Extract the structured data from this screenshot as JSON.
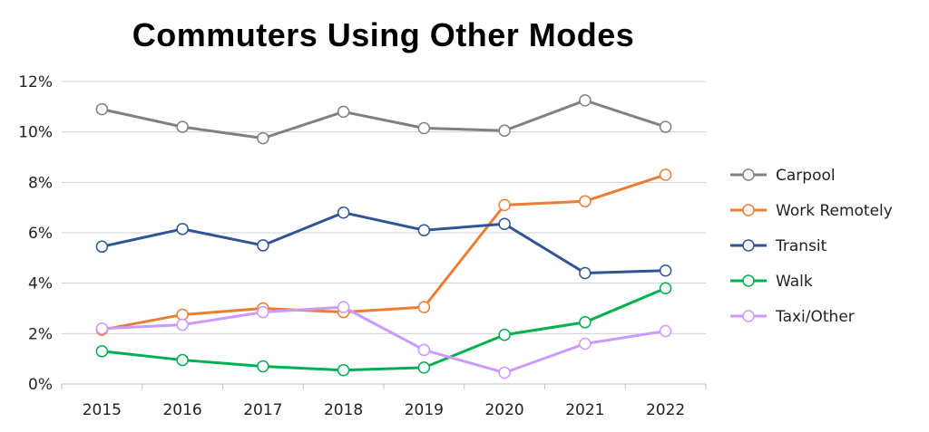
{
  "chart_data": {
    "type": "line",
    "title": "Commuters Using Other Modes",
    "xlabel": "",
    "ylabel": "",
    "categories": [
      "2015",
      "2016",
      "2017",
      "2018",
      "2019",
      "2020",
      "2021",
      "2022"
    ],
    "ylim": [
      0,
      12
    ],
    "yticks": [
      0,
      2,
      4,
      6,
      8,
      10,
      12
    ],
    "ytick_labels": [
      "0%",
      "2%",
      "4%",
      "6%",
      "8%",
      "10%",
      "12%"
    ],
    "grid": true,
    "legend_position": "right",
    "series": [
      {
        "name": "Carpool",
        "color": "#808080",
        "values": [
          10.9,
          10.2,
          9.75,
          10.8,
          10.15,
          10.05,
          11.25,
          10.2
        ]
      },
      {
        "name": "Work Remotely",
        "color": "#ED7D31",
        "values": [
          2.15,
          2.75,
          3.0,
          2.85,
          3.05,
          7.1,
          7.25,
          8.3
        ]
      },
      {
        "name": "Transit",
        "color": "#2F5597",
        "values": [
          5.45,
          6.15,
          5.5,
          6.8,
          6.1,
          6.35,
          4.4,
          4.5
        ]
      },
      {
        "name": "Walk",
        "color": "#00B050",
        "values": [
          1.3,
          0.95,
          0.7,
          0.55,
          0.65,
          1.95,
          2.45,
          3.8
        ]
      },
      {
        "name": "Taxi/Other",
        "color": "#CC99FF",
        "values": [
          2.2,
          2.35,
          2.85,
          3.05,
          1.35,
          0.45,
          1.6,
          2.1
        ]
      }
    ]
  }
}
